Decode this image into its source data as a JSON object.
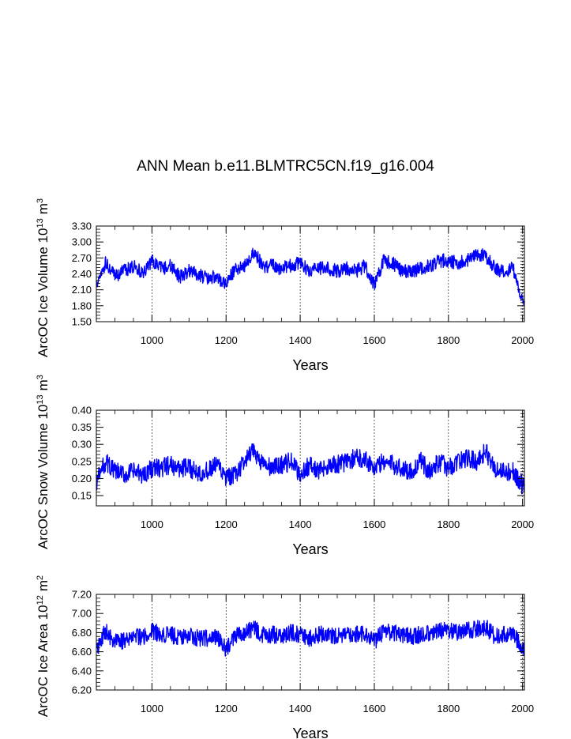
{
  "figure": {
    "title": "ANN Mean b.e11.BLMTRC5CN.f19_g16.004"
  },
  "colors": {
    "line": "#0000ff",
    "axis": "#000000",
    "grid": "#000000"
  },
  "chart_data": [
    {
      "type": "line",
      "series_name": "ArcOC Ice Volume",
      "ylabel_prefix": "ArcOC Ice Volume 10",
      "ylabel_exp": "13",
      "ylabel_unit": "m",
      "ylabel_unit_exp": "3",
      "xlabel": "Years",
      "xlim": [
        850,
        2005
      ],
      "ylim": [
        1.5,
        3.3
      ],
      "xticks": [
        1000,
        1200,
        1400,
        1600,
        1800,
        2000
      ],
      "yticks": [
        1.5,
        1.8,
        2.1,
        2.4,
        2.7,
        3.0,
        3.3
      ],
      "ytick_labels": [
        "1.50",
        "1.80",
        "2.10",
        "2.40",
        "2.70",
        "3.00",
        "3.30"
      ],
      "x": [
        850,
        875,
        900,
        925,
        950,
        975,
        1000,
        1025,
        1050,
        1075,
        1100,
        1125,
        1150,
        1175,
        1200,
        1225,
        1250,
        1275,
        1300,
        1325,
        1350,
        1375,
        1400,
        1425,
        1450,
        1475,
        1500,
        1525,
        1550,
        1575,
        1600,
        1625,
        1650,
        1675,
        1700,
        1725,
        1750,
        1775,
        1800,
        1825,
        1850,
        1875,
        1900,
        1925,
        1950,
        1975,
        2000
      ],
      "values": [
        2.2,
        2.6,
        2.35,
        2.45,
        2.55,
        2.4,
        2.65,
        2.5,
        2.55,
        2.35,
        2.45,
        2.4,
        2.3,
        2.35,
        2.2,
        2.5,
        2.55,
        2.8,
        2.55,
        2.55,
        2.5,
        2.55,
        2.6,
        2.45,
        2.5,
        2.5,
        2.45,
        2.5,
        2.45,
        2.55,
        2.2,
        2.65,
        2.6,
        2.45,
        2.45,
        2.5,
        2.55,
        2.65,
        2.65,
        2.6,
        2.65,
        2.75,
        2.75,
        2.5,
        2.45,
        2.5,
        1.85
      ],
      "seed": 1337,
      "noise": 0.13
    },
    {
      "type": "line",
      "series_name": "ArcOC Snow Volume",
      "ylabel_prefix": "ArcOC Snow Volume 10",
      "ylabel_exp": "13",
      "ylabel_unit": "m",
      "ylabel_unit_exp": "3",
      "xlabel": "Years",
      "xlim": [
        850,
        2005
      ],
      "ylim": [
        0.12,
        0.4
      ],
      "xticks": [
        1000,
        1200,
        1400,
        1600,
        1800,
        2000
      ],
      "yticks": [
        0.15,
        0.2,
        0.25,
        0.3,
        0.35,
        0.4
      ],
      "ytick_labels": [
        "0.15",
        "0.20",
        "0.25",
        "0.30",
        "0.35",
        "0.40"
      ],
      "x": [
        850,
        875,
        900,
        925,
        950,
        975,
        1000,
        1025,
        1050,
        1075,
        1100,
        1125,
        1150,
        1175,
        1200,
        1225,
        1250,
        1275,
        1300,
        1325,
        1350,
        1375,
        1400,
        1425,
        1450,
        1475,
        1500,
        1525,
        1550,
        1575,
        1600,
        1625,
        1650,
        1675,
        1700,
        1725,
        1750,
        1775,
        1800,
        1825,
        1850,
        1875,
        1900,
        1925,
        1950,
        1975,
        2000
      ],
      "values": [
        0.19,
        0.25,
        0.22,
        0.21,
        0.22,
        0.21,
        0.23,
        0.23,
        0.24,
        0.23,
        0.23,
        0.22,
        0.22,
        0.24,
        0.2,
        0.21,
        0.25,
        0.28,
        0.24,
        0.23,
        0.24,
        0.25,
        0.21,
        0.24,
        0.22,
        0.24,
        0.24,
        0.25,
        0.26,
        0.26,
        0.23,
        0.25,
        0.24,
        0.23,
        0.22,
        0.25,
        0.22,
        0.25,
        0.23,
        0.25,
        0.26,
        0.25,
        0.28,
        0.23,
        0.22,
        0.22,
        0.18
      ],
      "seed": 4242,
      "noise": 0.028
    },
    {
      "type": "line",
      "series_name": "ArcOC Ice Area",
      "ylabel_prefix": "ArcOC Ice Area 10",
      "ylabel_exp": "12",
      "ylabel_unit": "m",
      "ylabel_unit_exp": "2",
      "xlabel": "Years",
      "xlim": [
        850,
        2005
      ],
      "ylim": [
        6.2,
        7.2
      ],
      "xticks": [
        1000,
        1200,
        1400,
        1600,
        1800,
        2000
      ],
      "yticks": [
        6.2,
        6.4,
        6.6,
        6.8,
        7.0,
        7.2
      ],
      "ytick_labels": [
        "6.20",
        "6.40",
        "6.60",
        "6.80",
        "7.00",
        "7.20"
      ],
      "x": [
        850,
        875,
        900,
        925,
        950,
        975,
        1000,
        1025,
        1050,
        1075,
        1100,
        1125,
        1150,
        1175,
        1200,
        1225,
        1250,
        1275,
        1300,
        1325,
        1350,
        1375,
        1400,
        1425,
        1450,
        1475,
        1500,
        1525,
        1550,
        1575,
        1600,
        1625,
        1650,
        1675,
        1700,
        1725,
        1750,
        1775,
        1800,
        1825,
        1850,
        1875,
        1900,
        1925,
        1950,
        1975,
        2000
      ],
      "values": [
        6.6,
        6.82,
        6.7,
        6.72,
        6.78,
        6.74,
        6.82,
        6.78,
        6.78,
        6.74,
        6.76,
        6.74,
        6.74,
        6.76,
        6.62,
        6.76,
        6.8,
        6.84,
        6.78,
        6.78,
        6.76,
        6.8,
        6.78,
        6.74,
        6.78,
        6.78,
        6.76,
        6.78,
        6.78,
        6.8,
        6.7,
        6.82,
        6.8,
        6.78,
        6.76,
        6.78,
        6.8,
        6.82,
        6.82,
        6.8,
        6.82,
        6.84,
        6.86,
        6.76,
        6.78,
        6.8,
        6.62
      ],
      "seed": 9001,
      "noise": 0.09
    }
  ]
}
